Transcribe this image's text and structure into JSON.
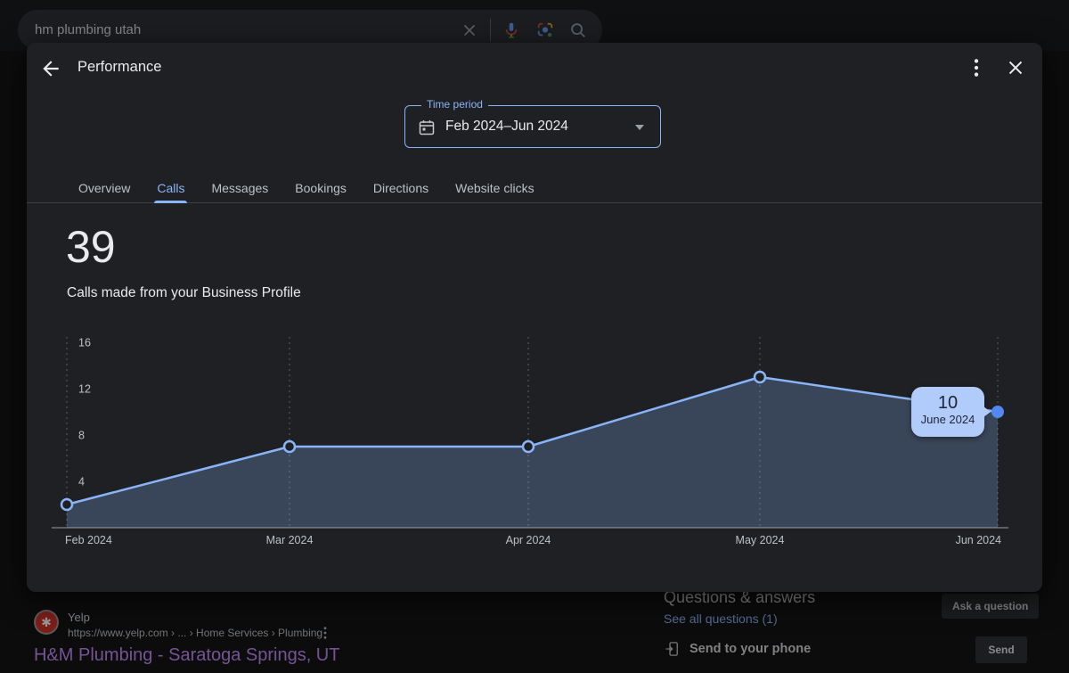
{
  "search": {
    "query": "hm plumbing utah"
  },
  "panel": {
    "title": "Performance",
    "time_period": {
      "label": "Time period",
      "value": "Feb 2024–Jun 2024"
    },
    "tabs": [
      {
        "label": "Overview",
        "active": false
      },
      {
        "label": "Calls",
        "active": true
      },
      {
        "label": "Messages",
        "active": false
      },
      {
        "label": "Bookings",
        "active": false
      },
      {
        "label": "Directions",
        "active": false
      },
      {
        "label": "Website clicks",
        "active": false
      }
    ],
    "metric": {
      "value": "39",
      "caption": "Calls made from your Business Profile"
    }
  },
  "chart_data": {
    "type": "area",
    "title": "Calls made from your Business Profile",
    "x": [
      "Feb 2024",
      "Mar 2024",
      "Apr 2024",
      "May 2024",
      "Jun 2024"
    ],
    "values": [
      2,
      7,
      7,
      13,
      10
    ],
    "yticks": [
      4,
      8,
      12,
      16
    ],
    "ylim": [
      0,
      16
    ],
    "grid": "vertical-dashed",
    "legend": "none",
    "tooltip": {
      "value": "10",
      "label": "June 2024",
      "point": "Jun 2024"
    },
    "colors": {
      "line": "#8ab4f8",
      "fill": "rgba(138,180,248,0.25)",
      "highlight_dot": "#5288f0",
      "tooltip_bg": "#b1cbfa",
      "axis_text": "#bdc1c6"
    }
  },
  "serp": {
    "result": {
      "site": "Yelp",
      "url": "https://www.yelp.com › ... › Home Services › Plumbing",
      "title": "H&M Plumbing - Saratoga Springs, UT"
    },
    "qa": {
      "heading": "Questions & answers",
      "see_all": "See all questions (1)",
      "ask_button": "Ask a question"
    },
    "send": {
      "label": "Send to your phone",
      "button": "Send"
    }
  }
}
